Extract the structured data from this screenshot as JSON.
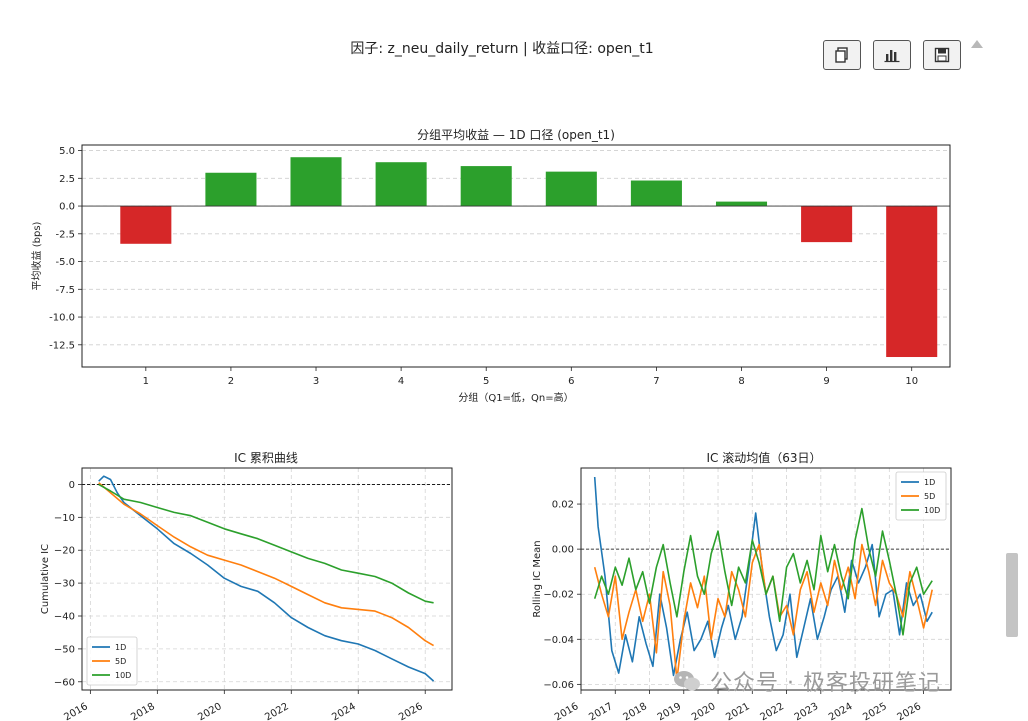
{
  "page": {
    "title": "因子: z_neu_daily_return  |  收益口径: open_t1",
    "watermark": "公众号 · 极客投研笔记"
  },
  "toolbar": {
    "copy_icon": "copy-icon",
    "chart_icon": "bar-chart-icon",
    "save_icon": "save-icon",
    "collapse_icon": "caret-up-icon"
  },
  "chart_data": [
    {
      "type": "bar",
      "title": "分组平均收益 — 1D 口径 (open_t1)",
      "xlabel": "分组（Q1=低，Qn=高）",
      "ylabel": "平均收益 (bps)",
      "categories": [
        "1",
        "2",
        "3",
        "4",
        "5",
        "6",
        "7",
        "8",
        "9",
        "10"
      ],
      "values": [
        -3.4,
        3.0,
        4.4,
        3.95,
        3.6,
        3.1,
        2.3,
        0.4,
        -3.25,
        -13.6
      ],
      "colors": {
        "positive": "#2ca02c",
        "negative": "#d62728"
      },
      "ylim": [
        -14.5,
        5.5
      ],
      "yticks": [
        5.0,
        2.5,
        0.0,
        -2.5,
        -5.0,
        -7.5,
        -10.0,
        -12.5
      ],
      "ytick_labels": [
        "5.0",
        "2.5",
        "0.0",
        "-2.5",
        "-5.0",
        "-7.5",
        "-10.0",
        "-12.5"
      ],
      "grid": "horizontal dashed",
      "zero_line": true
    },
    {
      "type": "line",
      "title": "IC 累积曲线",
      "xlabel": "",
      "ylabel": "Cumulative IC",
      "xlim": [
        2015.75,
        2026.8
      ],
      "ylim": [
        -62.5,
        5
      ],
      "xticks": [
        2016,
        2018,
        2020,
        2022,
        2024,
        2026
      ],
      "xtick_labels": [
        "2016",
        "2018",
        "2020",
        "2022",
        "2024",
        "2026"
      ],
      "yticks": [
        0,
        -10,
        -20,
        -30,
        -40,
        -50,
        -60
      ],
      "ytick_labels": [
        "0",
        "−10",
        "−20",
        "−30",
        "−40",
        "−50",
        "−60"
      ],
      "legend": "lower-left",
      "grid": "both dashed",
      "zero_line": true,
      "series": [
        {
          "name": "1D",
          "color": "#1f77b4",
          "x": [
            2016.25,
            2016.4,
            2016.6,
            2016.8,
            2017.0,
            2017.5,
            2018.0,
            2018.5,
            2019.0,
            2019.5,
            2020.0,
            2020.5,
            2021.0,
            2021.5,
            2022.0,
            2022.5,
            2023.0,
            2023.5,
            2024.0,
            2024.5,
            2025.0,
            2025.5,
            2026.0,
            2026.25
          ],
          "y": [
            1.0,
            2.5,
            1.5,
            -2.5,
            -5.5,
            -9.5,
            -13.5,
            -18.0,
            -21.0,
            -24.5,
            -28.5,
            -31.0,
            -32.5,
            -36.0,
            -40.5,
            -43.5,
            -46.0,
            -47.5,
            -48.5,
            -50.5,
            -53.0,
            -55.5,
            -57.5,
            -59.8
          ]
        },
        {
          "name": "5D",
          "color": "#ff7f0e",
          "x": [
            2016.25,
            2016.6,
            2017.0,
            2017.5,
            2018.0,
            2018.5,
            2019.0,
            2019.5,
            2020.0,
            2020.5,
            2021.0,
            2021.5,
            2022.0,
            2022.5,
            2023.0,
            2023.5,
            2024.0,
            2024.5,
            2025.0,
            2025.5,
            2026.0,
            2026.25
          ],
          "y": [
            0.5,
            -2.5,
            -6.0,
            -9.0,
            -12.5,
            -16.0,
            -19.0,
            -21.5,
            -23.0,
            -24.5,
            -26.5,
            -28.5,
            -31.0,
            -33.5,
            -36.0,
            -37.5,
            -38.0,
            -38.5,
            -40.5,
            -43.5,
            -47.5,
            -49.0
          ]
        },
        {
          "name": "10D",
          "color": "#2ca02c",
          "x": [
            2016.25,
            2016.6,
            2017.0,
            2017.5,
            2018.0,
            2018.5,
            2019.0,
            2019.5,
            2020.0,
            2020.5,
            2021.0,
            2021.5,
            2022.0,
            2022.5,
            2023.0,
            2023.5,
            2024.0,
            2024.5,
            2025.0,
            2025.5,
            2026.0,
            2026.25
          ],
          "y": [
            0.0,
            -2.0,
            -4.5,
            -5.5,
            -7.0,
            -8.5,
            -9.5,
            -11.5,
            -13.5,
            -15.0,
            -16.5,
            -18.5,
            -20.5,
            -22.5,
            -24.0,
            -26.0,
            -27.0,
            -28.0,
            -30.0,
            -33.0,
            -35.5,
            -36.0
          ]
        }
      ]
    },
    {
      "type": "line",
      "title": "IC 滚动均值（63日）",
      "xlabel": "",
      "ylabel": "Rolling IC Mean",
      "xlim": [
        2016.0,
        2026.8
      ],
      "ylim": [
        -0.0625,
        0.036
      ],
      "xticks": [
        2016,
        2017,
        2018,
        2019,
        2020,
        2021,
        2022,
        2023,
        2024,
        2025,
        2026
      ],
      "xtick_labels": [
        "2016",
        "2017",
        "2018",
        "2019",
        "2020",
        "2021",
        "2022",
        "2023",
        "2024",
        "2025",
        "2026"
      ],
      "yticks": [
        0.02,
        0.0,
        -0.02,
        -0.04,
        -0.06
      ],
      "ytick_labels": [
        "0.02",
        "0.00",
        "−0.02",
        "−0.04",
        "−0.06"
      ],
      "legend": "top-right",
      "grid": "both dashed",
      "zero_line": true,
      "series": [
        {
          "name": "1D",
          "color": "#1f77b4",
          "x": [
            2016.4,
            2016.5,
            2016.7,
            2016.9,
            2017.1,
            2017.3,
            2017.5,
            2017.7,
            2017.9,
            2018.1,
            2018.3,
            2018.5,
            2018.7,
            2018.9,
            2019.1,
            2019.3,
            2019.5,
            2019.7,
            2019.9,
            2020.1,
            2020.3,
            2020.5,
            2020.7,
            2020.9,
            2021.1,
            2021.3,
            2021.5,
            2021.7,
            2021.9,
            2022.1,
            2022.3,
            2022.5,
            2022.7,
            2022.9,
            2023.1,
            2023.3,
            2023.5,
            2023.7,
            2023.9,
            2024.1,
            2024.3,
            2024.5,
            2024.7,
            2024.9,
            2025.1,
            2025.3,
            2025.5,
            2025.7,
            2025.9,
            2026.1,
            2026.25
          ],
          "y": [
            0.032,
            0.01,
            -0.012,
            -0.045,
            -0.055,
            -0.038,
            -0.05,
            -0.03,
            -0.042,
            -0.052,
            -0.02,
            -0.035,
            -0.056,
            -0.04,
            -0.028,
            -0.045,
            -0.04,
            -0.032,
            -0.048,
            -0.035,
            -0.025,
            -0.04,
            -0.03,
            -0.008,
            0.016,
            -0.01,
            -0.03,
            -0.045,
            -0.038,
            -0.02,
            -0.048,
            -0.035,
            -0.022,
            -0.04,
            -0.03,
            -0.018,
            -0.012,
            -0.028,
            -0.005,
            -0.015,
            -0.008,
            0.002,
            -0.03,
            -0.02,
            -0.018,
            -0.038,
            -0.015,
            -0.025,
            -0.02,
            -0.032,
            -0.028
          ]
        },
        {
          "name": "5D",
          "color": "#ff7f0e",
          "x": [
            2016.4,
            2016.6,
            2016.8,
            2017.0,
            2017.2,
            2017.4,
            2017.6,
            2017.8,
            2018.0,
            2018.2,
            2018.4,
            2018.6,
            2018.8,
            2019.0,
            2019.2,
            2019.4,
            2019.6,
            2019.8,
            2020.0,
            2020.2,
            2020.4,
            2020.6,
            2020.8,
            2021.0,
            2021.2,
            2021.4,
            2021.6,
            2021.8,
            2022.0,
            2022.2,
            2022.4,
            2022.6,
            2022.8,
            2023.0,
            2023.2,
            2023.4,
            2023.6,
            2023.8,
            2024.0,
            2024.2,
            2024.4,
            2024.6,
            2024.8,
            2025.0,
            2025.2,
            2025.4,
            2025.6,
            2025.8,
            2026.0,
            2026.25
          ],
          "y": [
            -0.008,
            -0.02,
            -0.03,
            -0.012,
            -0.04,
            -0.028,
            -0.018,
            -0.032,
            -0.02,
            -0.046,
            -0.01,
            -0.025,
            -0.058,
            -0.032,
            -0.015,
            -0.026,
            -0.012,
            -0.04,
            -0.022,
            -0.03,
            -0.01,
            -0.018,
            -0.03,
            -0.006,
            0.002,
            -0.02,
            -0.012,
            -0.03,
            -0.025,
            -0.038,
            -0.018,
            -0.01,
            -0.028,
            -0.015,
            -0.025,
            -0.005,
            -0.018,
            -0.008,
            -0.022,
            0.002,
            -0.01,
            -0.025,
            -0.005,
            -0.015,
            -0.02,
            -0.03,
            -0.01,
            -0.022,
            -0.035,
            -0.018
          ]
        },
        {
          "name": "10D",
          "color": "#2ca02c",
          "x": [
            2016.4,
            2016.6,
            2016.8,
            2017.0,
            2017.2,
            2017.4,
            2017.6,
            2017.8,
            2018.0,
            2018.2,
            2018.4,
            2018.6,
            2018.8,
            2019.0,
            2019.2,
            2019.4,
            2019.6,
            2019.8,
            2020.0,
            2020.2,
            2020.4,
            2020.6,
            2020.8,
            2021.0,
            2021.2,
            2021.4,
            2021.6,
            2021.8,
            2022.0,
            2022.2,
            2022.4,
            2022.6,
            2022.8,
            2023.0,
            2023.2,
            2023.4,
            2023.6,
            2023.8,
            2024.0,
            2024.2,
            2024.4,
            2024.6,
            2024.8,
            2025.0,
            2025.2,
            2025.4,
            2025.6,
            2025.8,
            2026.0,
            2026.25
          ],
          "y": [
            -0.022,
            -0.012,
            -0.02,
            -0.008,
            -0.016,
            -0.004,
            -0.018,
            -0.01,
            -0.024,
            -0.008,
            0.002,
            -0.015,
            -0.03,
            -0.01,
            0.006,
            -0.012,
            -0.02,
            -0.002,
            0.008,
            -0.01,
            -0.025,
            -0.008,
            -0.015,
            0.004,
            -0.006,
            -0.02,
            -0.012,
            -0.032,
            -0.008,
            -0.002,
            -0.015,
            -0.005,
            -0.018,
            0.006,
            -0.01,
            0.002,
            -0.012,
            -0.022,
            0.004,
            0.018,
            0.0,
            -0.012,
            0.008,
            -0.005,
            -0.02,
            -0.038,
            -0.015,
            -0.008,
            -0.02,
            -0.014
          ]
        }
      ]
    }
  ]
}
